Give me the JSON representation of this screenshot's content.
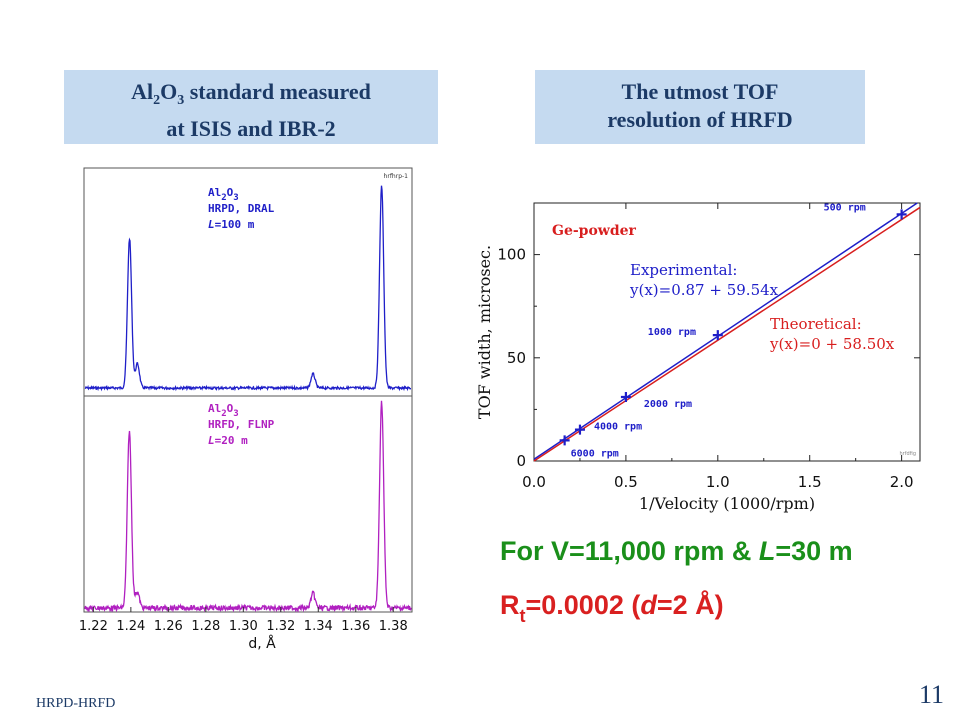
{
  "left_title": {
    "line1_a": "Al",
    "line1_sub1": "2",
    "line1_b": "O",
    "line1_sub2": "3",
    "line1_c": " standard measured",
    "line2": "at ISIS and IBR-2"
  },
  "right_title": {
    "line1": "The utmost TOF",
    "line2": "resolution of HRFD"
  },
  "formula_line": {
    "a": "For V=11,000 rpm & ",
    "L": "L",
    "b": "=30 m"
  },
  "resolution_line": {
    "R": "R",
    "sub": "t",
    "a": "=0.0002 (",
    "d": "d",
    "b": "=2 Å)"
  },
  "footer_left": "HRPD-HRFD",
  "page_number": "11",
  "chart_data": [
    {
      "type": "line",
      "title": "",
      "xlabel": "d, Å",
      "ylabel": "",
      "xlim": [
        1.215,
        1.39
      ],
      "x_ticks": [
        "1.22",
        "1.24",
        "1.26",
        "1.28",
        "1.30",
        "1.32",
        "1.34",
        "1.36",
        "1.38"
      ],
      "corner_label": "hrfhrp-1",
      "panels": [
        {
          "name": "top",
          "color": "#1f1fc8",
          "legend": {
            "l1a": "Al",
            "l1s1": "2",
            "l1b": "O",
            "l1s2": "3",
            "l2": "HRPD, DRAL",
            "l3i": "L",
            "l3": "=100 m"
          },
          "peaks": [
            {
              "x": 1.2393,
              "h": 0.74
            },
            {
              "x": 1.2435,
              "h": 0.12
            },
            {
              "x": 1.3372,
              "h": 0.07
            },
            {
              "x": 1.3738,
              "h": 1.0
            }
          ]
        },
        {
          "name": "bottom",
          "color": "#b020c0",
          "legend": {
            "l1a": "Al",
            "l1s1": "2",
            "l1b": "O",
            "l1s2": "3",
            "l2": "HRFD, FLNP",
            "l3i": "L",
            "l3": "=20 m"
          },
          "peaks": [
            {
              "x": 1.2392,
              "h": 0.86
            },
            {
              "x": 1.2434,
              "h": 0.08
            },
            {
              "x": 1.3372,
              "h": 0.07
            },
            {
              "x": 1.3738,
              "h": 1.0
            }
          ]
        }
      ]
    },
    {
      "type": "scatter",
      "title": "Ge-powder",
      "xlabel": "1/Velocity (1000/rpm)",
      "ylabel": "TOF width, microsec.",
      "xlim": [
        0.0,
        2.1
      ],
      "ylim": [
        0,
        125
      ],
      "x_ticks": [
        0.0,
        0.5,
        1.0,
        1.5,
        2.0
      ],
      "y_ticks": [
        0,
        50,
        100
      ],
      "points": [
        {
          "x": 0.1667,
          "y": 10.0,
          "label": "6000 rpm"
        },
        {
          "x": 0.25,
          "y": 15.2,
          "label": "4000 rpm"
        },
        {
          "x": 0.5,
          "y": 31.0,
          "label": "2000 rpm"
        },
        {
          "x": 1.0,
          "y": 61.0,
          "label": "1000 rpm"
        },
        {
          "x": 2.0,
          "y": 119.5,
          "label": "500 rpm"
        }
      ],
      "series": [
        {
          "name": "Experimental",
          "equation": "y(x)=0.87 + 59.54x",
          "intercept": 0.87,
          "slope": 59.54,
          "color": "#1e1ec8"
        },
        {
          "name": "Theoretical",
          "equation": "y(x)=0 + 58.50x",
          "intercept": 0,
          "slope": 58.5,
          "color": "#d81e1e"
        }
      ],
      "corner_label": "hrfdfig"
    }
  ]
}
